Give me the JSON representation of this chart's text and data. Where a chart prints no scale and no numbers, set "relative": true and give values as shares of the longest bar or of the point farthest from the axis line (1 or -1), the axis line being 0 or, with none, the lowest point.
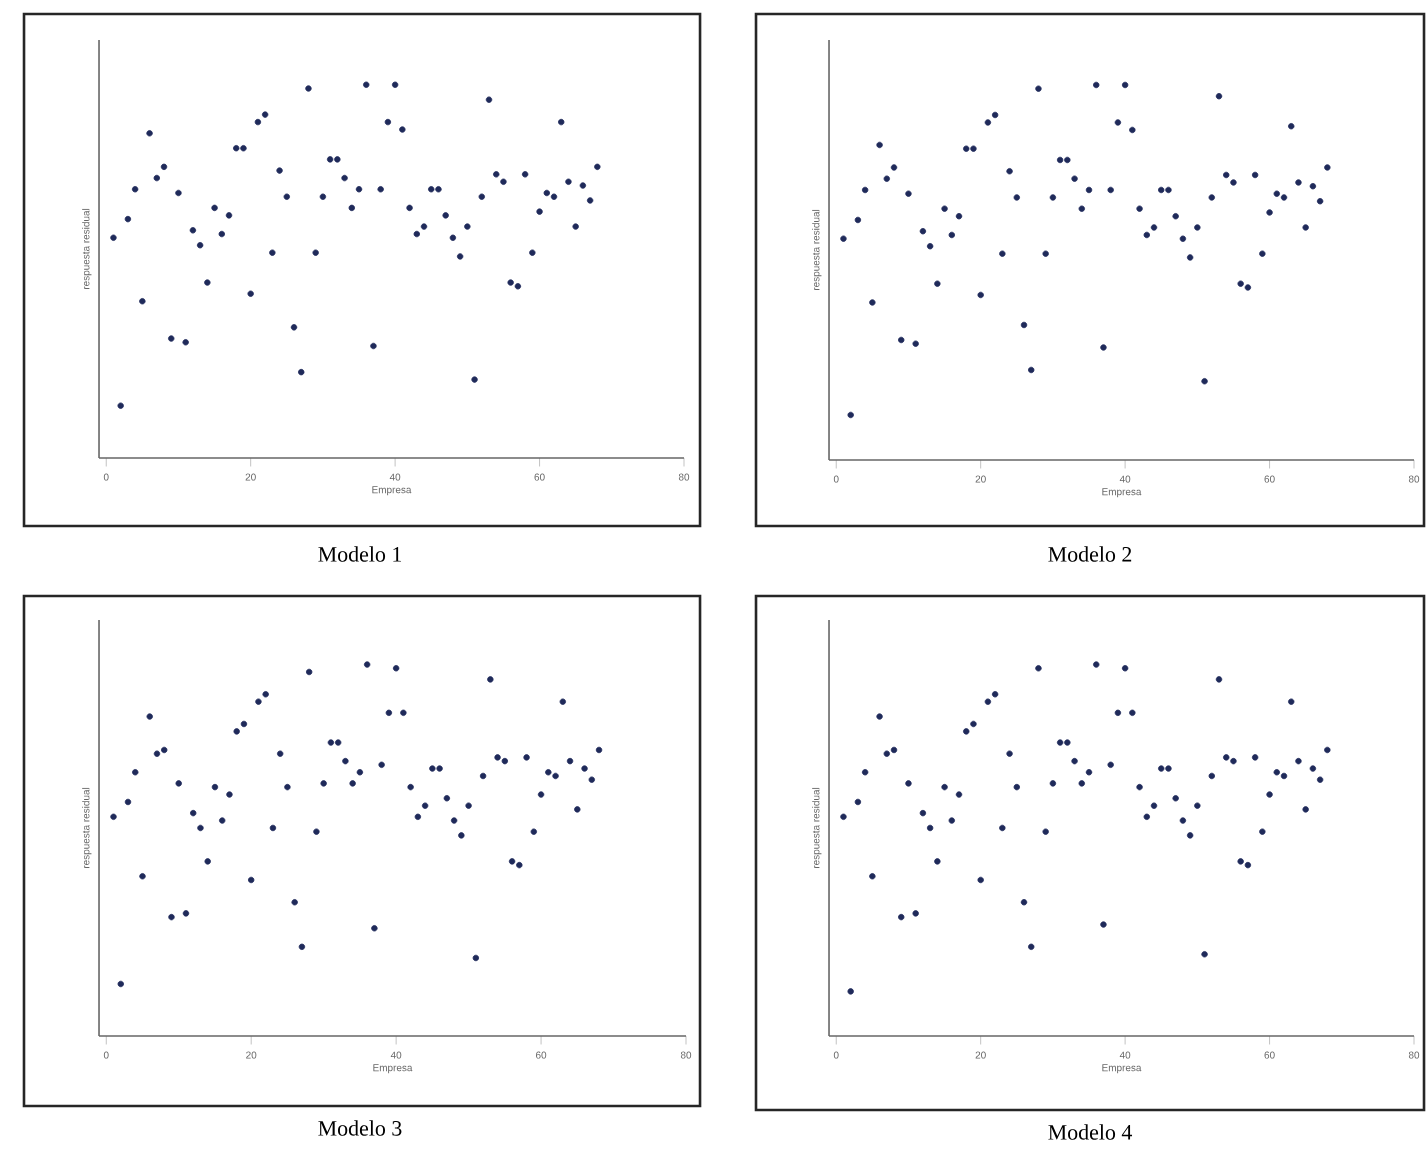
{
  "chart_data": [
    {
      "type": "scatter",
      "title": "Modelo 1",
      "xlabel": "Empresa",
      "ylabel": "respuesta residual",
      "relative": true,
      "color": "#1f2a5a",
      "xlim": [
        -1,
        80
      ],
      "xticks": [
        0,
        20,
        40,
        60,
        80
      ],
      "x": [
        1,
        2,
        3,
        4,
        5,
        6,
        7,
        8,
        9,
        10,
        11,
        12,
        13,
        14,
        15,
        16,
        17,
        18,
        19,
        20,
        21,
        22,
        23,
        24,
        25,
        26,
        27,
        28,
        29,
        30,
        31,
        32,
        33,
        34,
        35,
        36,
        37,
        38,
        39,
        40,
        41,
        42,
        43,
        44,
        45,
        46,
        47,
        48,
        49,
        50,
        51,
        52,
        53,
        54,
        55,
        56,
        57,
        58,
        59,
        60,
        61,
        62,
        63,
        64,
        65,
        66,
        67,
        68
      ],
      "values": [
        0.59,
        0.14,
        0.64,
        0.72,
        0.42,
        0.87,
        0.75,
        0.78,
        0.32,
        0.71,
        0.31,
        0.61,
        0.57,
        0.47,
        0.67,
        0.6,
        0.65,
        0.83,
        0.83,
        0.44,
        0.9,
        0.92,
        0.55,
        0.77,
        0.7,
        0.35,
        0.23,
        0.99,
        0.55,
        0.7,
        0.8,
        0.8,
        0.75,
        0.67,
        0.72,
        1.0,
        0.3,
        0.72,
        0.9,
        1.0,
        0.88,
        0.67,
        0.6,
        0.62,
        0.72,
        0.72,
        0.65,
        0.59,
        0.54,
        0.62,
        0.21,
        0.7,
        0.96,
        0.76,
        0.74,
        0.47,
        0.46,
        0.76,
        0.55,
        0.66,
        0.71,
        0.7,
        0.9,
        0.74,
        0.62,
        0.73,
        0.69,
        0.78
      ]
    },
    {
      "type": "scatter",
      "title": "Modelo 2",
      "xlabel": "Empresa",
      "ylabel": "respuesta residual",
      "relative": true,
      "color": "#1f2a5a",
      "xlim": [
        -1,
        80
      ],
      "xticks": [
        0,
        20,
        40,
        60,
        80
      ],
      "x": [
        1,
        2,
        3,
        4,
        5,
        6,
        7,
        8,
        9,
        10,
        11,
        12,
        13,
        14,
        15,
        16,
        17,
        18,
        19,
        20,
        21,
        22,
        23,
        24,
        25,
        26,
        27,
        28,
        29,
        30,
        31,
        32,
        33,
        34,
        35,
        36,
        37,
        38,
        39,
        40,
        41,
        42,
        43,
        44,
        45,
        46,
        47,
        48,
        49,
        50,
        51,
        52,
        53,
        54,
        55,
        56,
        57,
        58,
        59,
        60,
        61,
        62,
        63,
        64,
        65,
        66,
        67,
        68
      ],
      "values": [
        0.59,
        0.12,
        0.64,
        0.72,
        0.42,
        0.84,
        0.75,
        0.78,
        0.32,
        0.71,
        0.31,
        0.61,
        0.57,
        0.47,
        0.67,
        0.6,
        0.65,
        0.83,
        0.83,
        0.44,
        0.9,
        0.92,
        0.55,
        0.77,
        0.7,
        0.36,
        0.24,
        0.99,
        0.55,
        0.7,
        0.8,
        0.8,
        0.75,
        0.67,
        0.72,
        1.0,
        0.3,
        0.72,
        0.9,
        1.0,
        0.88,
        0.67,
        0.6,
        0.62,
        0.72,
        0.72,
        0.65,
        0.59,
        0.54,
        0.62,
        0.21,
        0.7,
        0.97,
        0.76,
        0.74,
        0.47,
        0.46,
        0.76,
        0.55,
        0.66,
        0.71,
        0.7,
        0.89,
        0.74,
        0.62,
        0.73,
        0.69,
        0.78
      ]
    },
    {
      "type": "scatter",
      "title": "Modelo 3",
      "xlabel": "Empresa",
      "ylabel": "respuesta residual",
      "relative": true,
      "color": "#1f2a5a",
      "xlim": [
        -1,
        80
      ],
      "xticks": [
        0,
        20,
        40,
        60,
        80
      ],
      "x": [
        1,
        2,
        3,
        4,
        5,
        6,
        7,
        8,
        9,
        10,
        11,
        12,
        13,
        14,
        15,
        16,
        17,
        18,
        19,
        20,
        21,
        22,
        23,
        24,
        25,
        26,
        27,
        28,
        29,
        30,
        31,
        32,
        33,
        34,
        35,
        36,
        37,
        38,
        39,
        40,
        41,
        42,
        43,
        44,
        45,
        46,
        47,
        48,
        49,
        50,
        51,
        52,
        53,
        54,
        55,
        56,
        57,
        58,
        59,
        60,
        61,
        62,
        63,
        64,
        65,
        66,
        67,
        68
      ],
      "values": [
        0.59,
        0.14,
        0.63,
        0.71,
        0.43,
        0.86,
        0.76,
        0.77,
        0.32,
        0.68,
        0.33,
        0.6,
        0.56,
        0.47,
        0.67,
        0.58,
        0.65,
        0.82,
        0.84,
        0.42,
        0.9,
        0.92,
        0.56,
        0.76,
        0.67,
        0.36,
        0.24,
        0.98,
        0.55,
        0.68,
        0.79,
        0.79,
        0.74,
        0.68,
        0.71,
        1.0,
        0.29,
        0.73,
        0.87,
        0.99,
        0.87,
        0.67,
        0.59,
        0.62,
        0.72,
        0.72,
        0.64,
        0.58,
        0.54,
        0.62,
        0.21,
        0.7,
        0.96,
        0.75,
        0.74,
        0.47,
        0.46,
        0.75,
        0.55,
        0.65,
        0.71,
        0.7,
        0.9,
        0.74,
        0.61,
        0.72,
        0.69,
        0.77
      ]
    },
    {
      "type": "scatter",
      "title": "Modelo 4",
      "xlabel": "Empresa",
      "ylabel": "respuesta residual",
      "relative": true,
      "color": "#1f2a5a",
      "xlim": [
        -1,
        80
      ],
      "xticks": [
        0,
        20,
        40,
        60,
        80
      ],
      "x": [
        1,
        2,
        3,
        4,
        5,
        6,
        7,
        8,
        9,
        10,
        11,
        12,
        13,
        14,
        15,
        16,
        17,
        18,
        19,
        20,
        21,
        22,
        23,
        24,
        25,
        26,
        27,
        28,
        29,
        30,
        31,
        32,
        33,
        34,
        35,
        36,
        37,
        38,
        39,
        40,
        41,
        42,
        43,
        44,
        45,
        46,
        47,
        48,
        49,
        50,
        51,
        52,
        53,
        54,
        55,
        56,
        57,
        58,
        59,
        60,
        61,
        62,
        63,
        64,
        65,
        66,
        67,
        68
      ],
      "values": [
        0.59,
        0.12,
        0.63,
        0.71,
        0.43,
        0.86,
        0.76,
        0.77,
        0.32,
        0.68,
        0.33,
        0.6,
        0.56,
        0.47,
        0.67,
        0.58,
        0.65,
        0.82,
        0.84,
        0.42,
        0.9,
        0.92,
        0.56,
        0.76,
        0.67,
        0.36,
        0.24,
        0.99,
        0.55,
        0.68,
        0.79,
        0.79,
        0.74,
        0.68,
        0.71,
        1.0,
        0.3,
        0.73,
        0.87,
        0.99,
        0.87,
        0.67,
        0.59,
        0.62,
        0.72,
        0.72,
        0.64,
        0.58,
        0.54,
        0.62,
        0.22,
        0.7,
        0.96,
        0.75,
        0.74,
        0.47,
        0.46,
        0.75,
        0.55,
        0.65,
        0.71,
        0.7,
        0.9,
        0.74,
        0.61,
        0.72,
        0.69,
        0.77
      ]
    }
  ]
}
